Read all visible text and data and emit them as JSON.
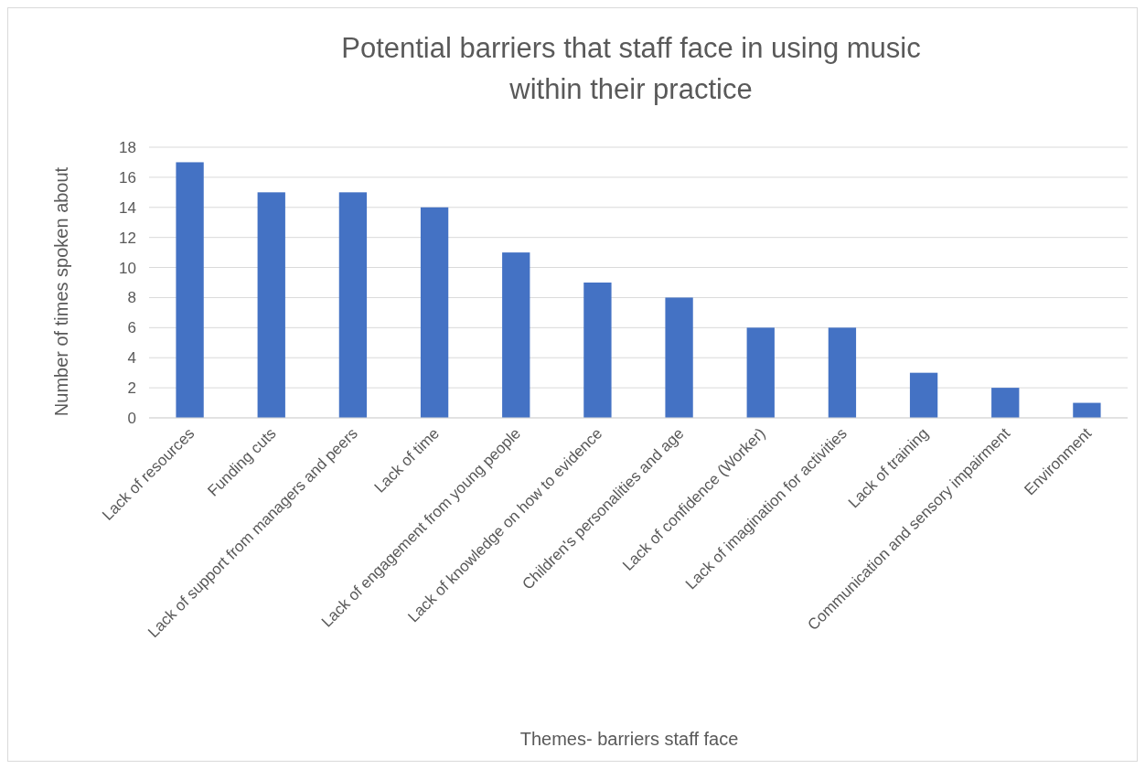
{
  "chart_data": {
    "type": "bar",
    "title": "Potential barriers that staff face in using music within their practice",
    "xlabel": "Themes- barriers staff face",
    "ylabel": "Number of times spoken about",
    "categories": [
      "Lack of resources",
      "Funding cuts",
      "Lack of support from managers and peers",
      "Lack of time",
      "Lack of engagement from young people",
      "Lack of knowledge on how to evidence",
      "Children's personalities and age",
      "Lack of confidence (Worker)",
      "Lack of imagination for activities",
      "Lack of training",
      "Communication and sensory impairment",
      "Environment"
    ],
    "values": [
      17,
      15,
      15,
      14,
      11,
      9,
      8,
      6,
      6,
      3,
      2,
      1
    ],
    "color": "#4472c4",
    "ylim": [
      0,
      18
    ],
    "yticks": [
      0,
      2,
      4,
      6,
      8,
      10,
      12,
      14,
      16,
      18
    ],
    "grid": "y"
  }
}
